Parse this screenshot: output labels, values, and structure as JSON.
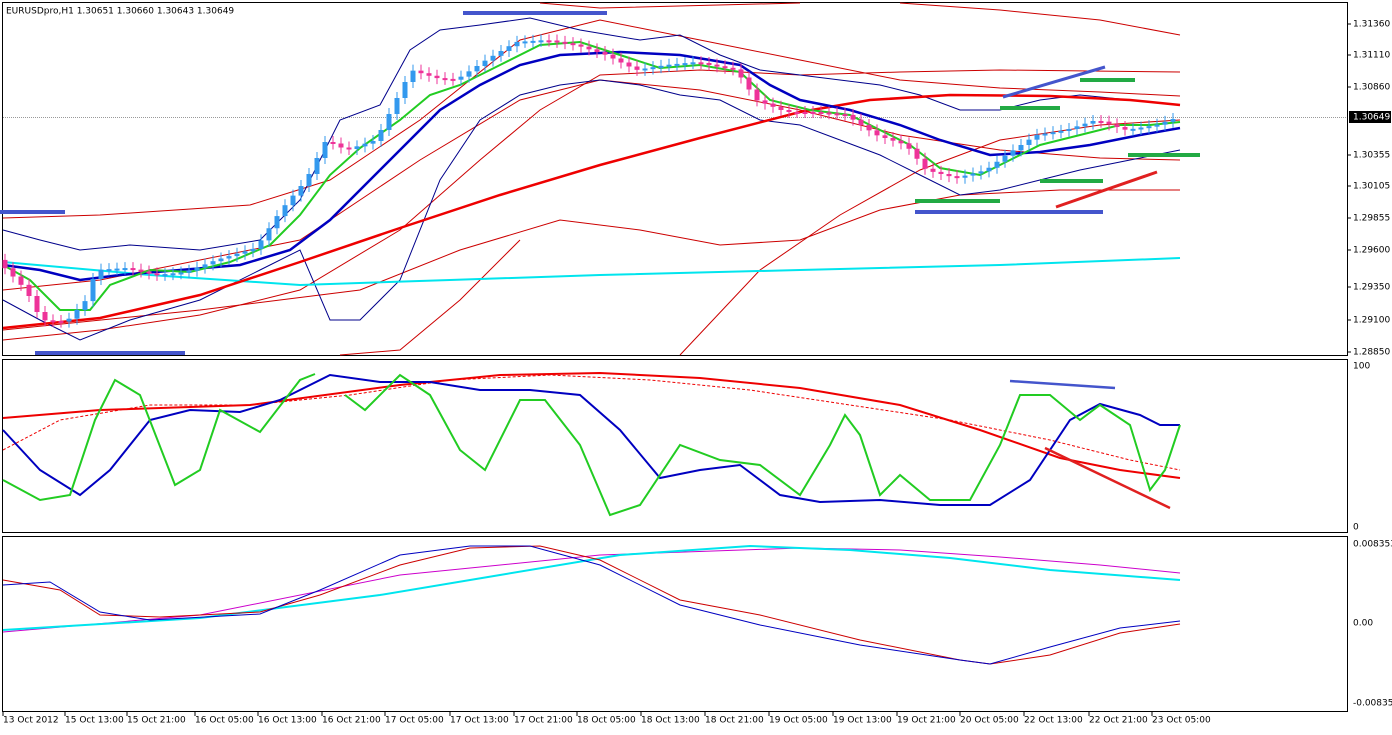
{
  "header": {
    "title": "EURUSDpro,H1  1.30651 1.30660 1.30643 1.30649"
  },
  "price_axis": {
    "ticks": [
      "1.31360",
      "1.31110",
      "1.30860",
      "1.30355",
      "1.30105",
      "1.29855",
      "1.29600",
      "1.29350",
      "1.29100",
      "1.28850"
    ],
    "current": "1.30649"
  },
  "oscillator_axis": {
    "ticks": [
      "100",
      "0"
    ]
  },
  "macd_axis": {
    "ticks": [
      "0.008353",
      "0.00",
      "-0.008353"
    ]
  },
  "time_axis": {
    "labels": [
      "13 Oct 2012",
      "15 Oct 13:00",
      "15 Oct 21:00",
      "16 Oct 05:00",
      "16 Oct 13:00",
      "16 Oct 21:00",
      "17 Oct 05:00",
      "17 Oct 13:00",
      "17 Oct 21:00",
      "18 Oct 05:00",
      "18 Oct 13:00",
      "18 Oct 21:00",
      "19 Oct 05:00",
      "19 Oct 13:00",
      "19 Oct 21:00",
      "20 Oct 05:00",
      "22 Oct 13:00",
      "22 Oct 21:00",
      "23 Oct 05:00"
    ]
  }
}
